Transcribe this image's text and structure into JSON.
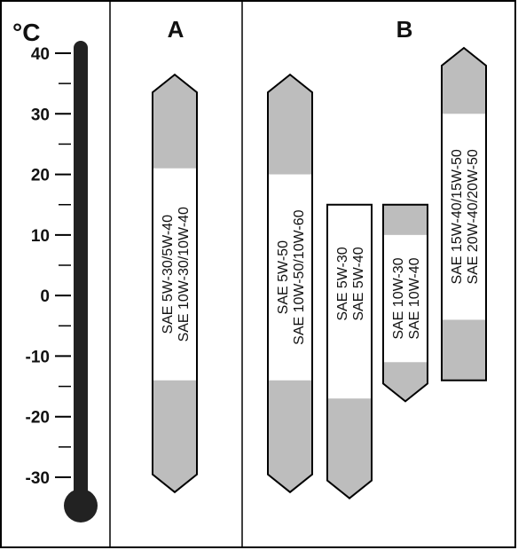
{
  "chart_data": {
    "type": "bar",
    "unit_label": "°C",
    "y_ticks": [
      40,
      30,
      20,
      10,
      0,
      -10,
      -20,
      -30
    ],
    "ylim": [
      -35,
      42
    ],
    "groups": [
      {
        "label": "A",
        "bars": [
          "A1"
        ]
      },
      {
        "label": "B",
        "bars": [
          "B1",
          "B2",
          "B3",
          "B4"
        ]
      }
    ],
    "bars": [
      {
        "id": "A1",
        "text": [
          "SAE 5W-30/5W-40",
          "SAE 10W-30/10W-40"
        ],
        "shape": "arrow-both",
        "top": 35,
        "bottom": -31,
        "white_top": 21,
        "white_bottom": -14
      },
      {
        "id": "B1",
        "text": [
          "SAE 5W-50",
          "SAE 10W-50/10W-60"
        ],
        "shape": "arrow-both",
        "top": 35,
        "bottom": -31,
        "white_top": 20,
        "white_bottom": -14
      },
      {
        "id": "B2",
        "text": [
          "SAE 5W-30",
          "SAE 5W-40"
        ],
        "shape": "arrow-bottom",
        "top": 15,
        "bottom": -32,
        "white_top": null,
        "white_bottom": -17
      },
      {
        "id": "B3",
        "text": [
          "SAE 10W-30",
          "SAE 10W-40"
        ],
        "shape": "arrow-bottom",
        "top": 15,
        "bottom": -16,
        "white_top": 10,
        "white_bottom": -11
      },
      {
        "id": "B4",
        "text": [
          "SAE 15W-40/15W-50",
          "SAE 20W-40/20W-50"
        ],
        "shape": "arrow-top",
        "top": 40,
        "bottom": -14,
        "white_top": 30,
        "white_bottom": -4
      }
    ],
    "colors": {
      "fill": "#bdbdbd",
      "white": "#ffffff",
      "line": "#000000",
      "thermometer": "#222222"
    }
  }
}
